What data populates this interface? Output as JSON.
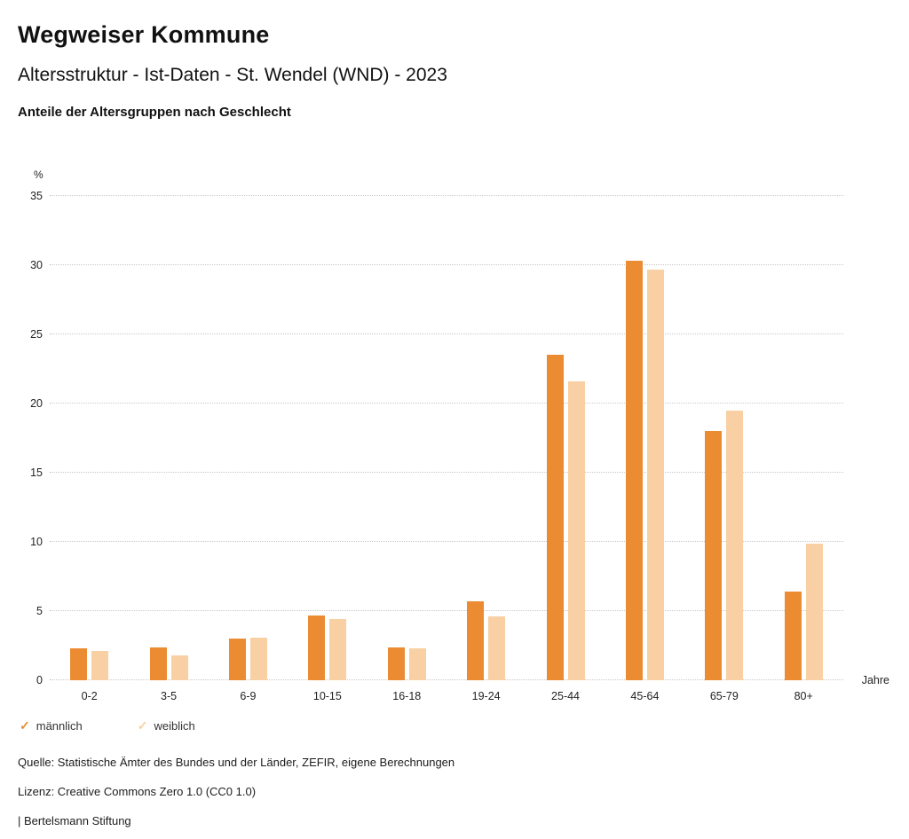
{
  "header": {
    "title": "Wegweiser Kommune",
    "subtitle": "Altersstruktur - Ist-Daten - St. Wendel (WND) - 2023",
    "section_title": "Anteile der Altersgruppen nach Geschlecht"
  },
  "chart_data": {
    "type": "bar",
    "categories": [
      "0-2",
      "3-5",
      "6-9",
      "10-15",
      "16-18",
      "19-24",
      "25-44",
      "45-64",
      "65-79",
      "80+"
    ],
    "series": [
      {
        "name": "männlich",
        "color": "#EB8C33",
        "values": [
          2.3,
          2.4,
          3.0,
          4.7,
          2.4,
          5.7,
          23.5,
          30.3,
          18.0,
          6.4
        ]
      },
      {
        "name": "weiblich",
        "color": "#F8D0A3",
        "values": [
          2.1,
          1.8,
          3.1,
          4.4,
          2.3,
          4.6,
          21.6,
          29.7,
          19.5,
          9.9
        ]
      }
    ],
    "title": "Anteile der Altersgruppen nach Geschlecht",
    "xlabel": "Jahre",
    "ylabel": "%",
    "ylim": [
      0,
      35
    ],
    "ytick_step": 5,
    "grid": true,
    "legend_position": "bottom"
  },
  "legend": {
    "check_glyph": "✓",
    "items": [
      {
        "label": "männlich",
        "color": "#EB8C33"
      },
      {
        "label": "weiblich",
        "color": "#F8D0A3"
      }
    ]
  },
  "footer": {
    "source": "Quelle: Statistische Ämter des Bundes und der Länder, ZEFIR, eigene Berechnungen",
    "license": "Lizenz: Creative Commons Zero 1.0 (CC0 1.0)",
    "attribution": "| Bertelsmann Stiftung"
  }
}
